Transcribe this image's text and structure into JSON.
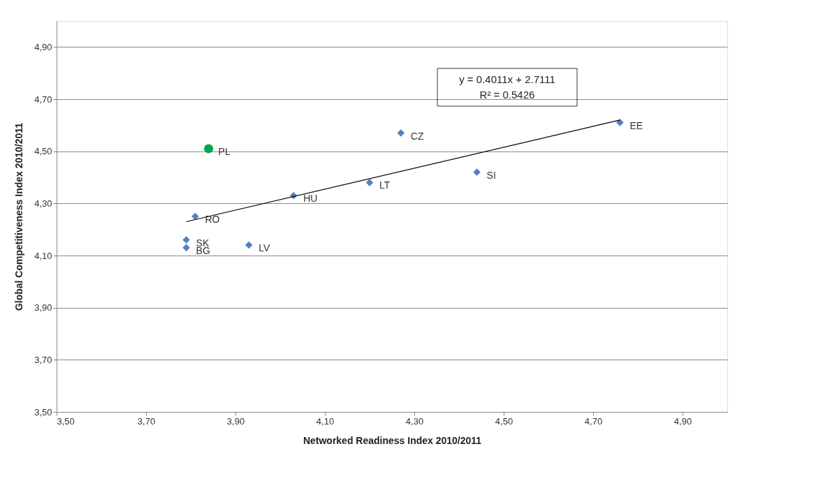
{
  "chart_data": {
    "type": "scatter",
    "xlabel": "Networked Readiness Index 2010/2011",
    "ylabel": "Global Competitiveness Index 2010/2011",
    "series": [
      {
        "color": "#4f81bd",
        "marker": "diamond",
        "x": [
          4.76,
          4.27,
          4.44,
          4.2,
          4.03,
          3.93,
          3.81,
          3.79,
          3.79
        ],
        "values": [
          4.61,
          4.57,
          4.42,
          4.38,
          4.33,
          4.14,
          4.25,
          4.16,
          4.13
        ]
      },
      {
        "color": "#00a550",
        "marker": "circle",
        "x": [
          3.84
        ],
        "values": [
          4.51
        ]
      },
      {
        "type": "line",
        "color": "#000000",
        "x": [
          3.79,
          4.76
        ],
        "values": [
          4.23,
          4.62
        ]
      }
    ],
    "annotations": [
      {
        "text": "EE",
        "x": 4.76,
        "y": 4.61
      },
      {
        "text": "CZ",
        "x": 4.27,
        "y": 4.57
      },
      {
        "text": "SI",
        "x": 4.44,
        "y": 4.42
      },
      {
        "text": "LT",
        "x": 4.2,
        "y": 4.38
      },
      {
        "text": "HU",
        "x": 4.03,
        "y": 4.33
      },
      {
        "text": "LV",
        "x": 3.93,
        "y": 4.14
      },
      {
        "text": "RO",
        "x": 3.81,
        "y": 4.25
      },
      {
        "text": "SK",
        "x": 3.79,
        "y": 4.16
      },
      {
        "text": "BG",
        "x": 3.79,
        "y": 4.13
      },
      {
        "text": "PL",
        "x": 3.84,
        "y": 4.51
      },
      "y = 0.4011x + 2.7111",
      "R² = 0.5426"
    ],
    "xlim": [
      3.5,
      5.0
    ],
    "xticks": [
      {
        "value": 3.5,
        "label": "3,50"
      },
      {
        "value": 3.7,
        "label": "3,70"
      },
      {
        "value": 3.9,
        "label": "3,90"
      },
      {
        "value": 4.1,
        "label": "4,10"
      },
      {
        "value": 4.3,
        "label": "4,30"
      },
      {
        "value": 4.5,
        "label": "4,50"
      },
      {
        "value": 4.7,
        "label": "4,70"
      },
      {
        "value": 4.9,
        "label": "4,90"
      }
    ],
    "ylim": [
      3.5,
      5.0
    ],
    "yticks": [
      {
        "value": 3.5,
        "label": "3,50"
      },
      {
        "value": 3.7,
        "label": "3,70"
      },
      {
        "value": 3.9,
        "label": "3,90"
      },
      {
        "value": 4.1,
        "label": "4,10"
      },
      {
        "value": 4.3,
        "label": "4,30"
      },
      {
        "value": 4.5,
        "label": "4,50"
      },
      {
        "value": 4.7,
        "label": "4,70"
      },
      {
        "value": 4.9,
        "label": "4,90"
      }
    ],
    "grid": "y"
  }
}
